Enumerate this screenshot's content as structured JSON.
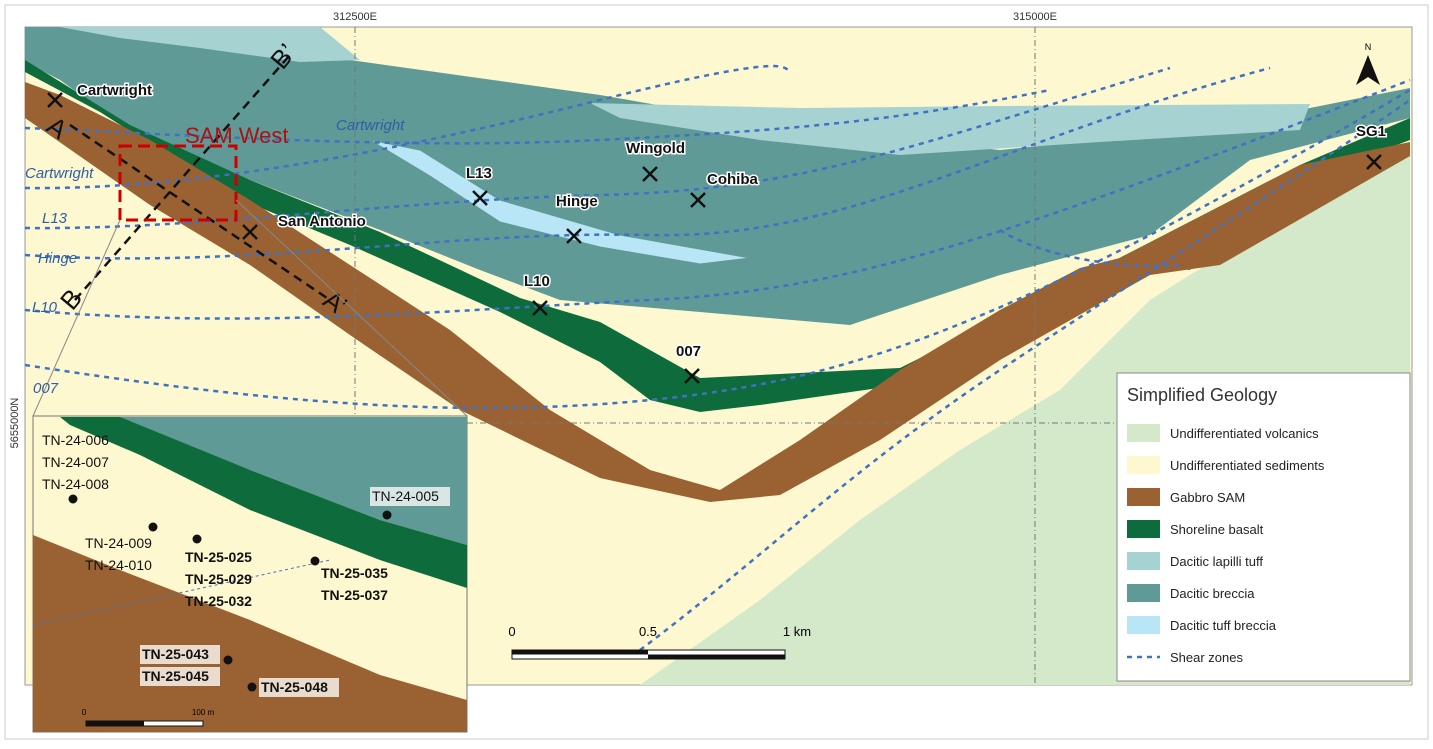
{
  "grid": {
    "eastings": [
      "312500E",
      "315000E"
    ],
    "northing": "5655000N"
  },
  "north": "N",
  "focus_area": "SAM West",
  "sections": [
    "B",
    "B’",
    "A",
    "A’"
  ],
  "shear_labels": [
    "Cartwright",
    "Cartwright",
    "L13",
    "Hinge",
    "L10",
    "007"
  ],
  "mines": [
    "Cartwright",
    "Wingold",
    "L13",
    "Cohiba",
    "Hinge",
    "San Antonio",
    "L10",
    "007",
    "SG1"
  ],
  "scale": [
    "0",
    "0.5",
    "1 km"
  ],
  "legend": {
    "title": "Simplified Geology",
    "items": [
      "Undifferentiated volcanics",
      "Undifferentiated sediments",
      "Gabbro SAM",
      "Shoreline basalt",
      "Dacitic  lapilli tuff",
      "Dacitic breccia",
      "Dacitic tuff breccia",
      "Shear zones"
    ]
  },
  "inset": {
    "holes": [
      [
        "TN-24-006",
        "TN-24-007",
        "TN-24-008"
      ],
      [
        "TN-24-005"
      ],
      [
        "TN-24-009",
        "TN-24-010"
      ],
      [
        "TN-25-025",
        "TN-25-029",
        "TN-25-032"
      ],
      [
        "TN-25-035",
        "TN-25-037"
      ],
      [
        "TN-25-043",
        "TN-25-045"
      ],
      [
        "TN-25-048"
      ]
    ],
    "scale": [
      "0",
      "100 m"
    ]
  }
}
